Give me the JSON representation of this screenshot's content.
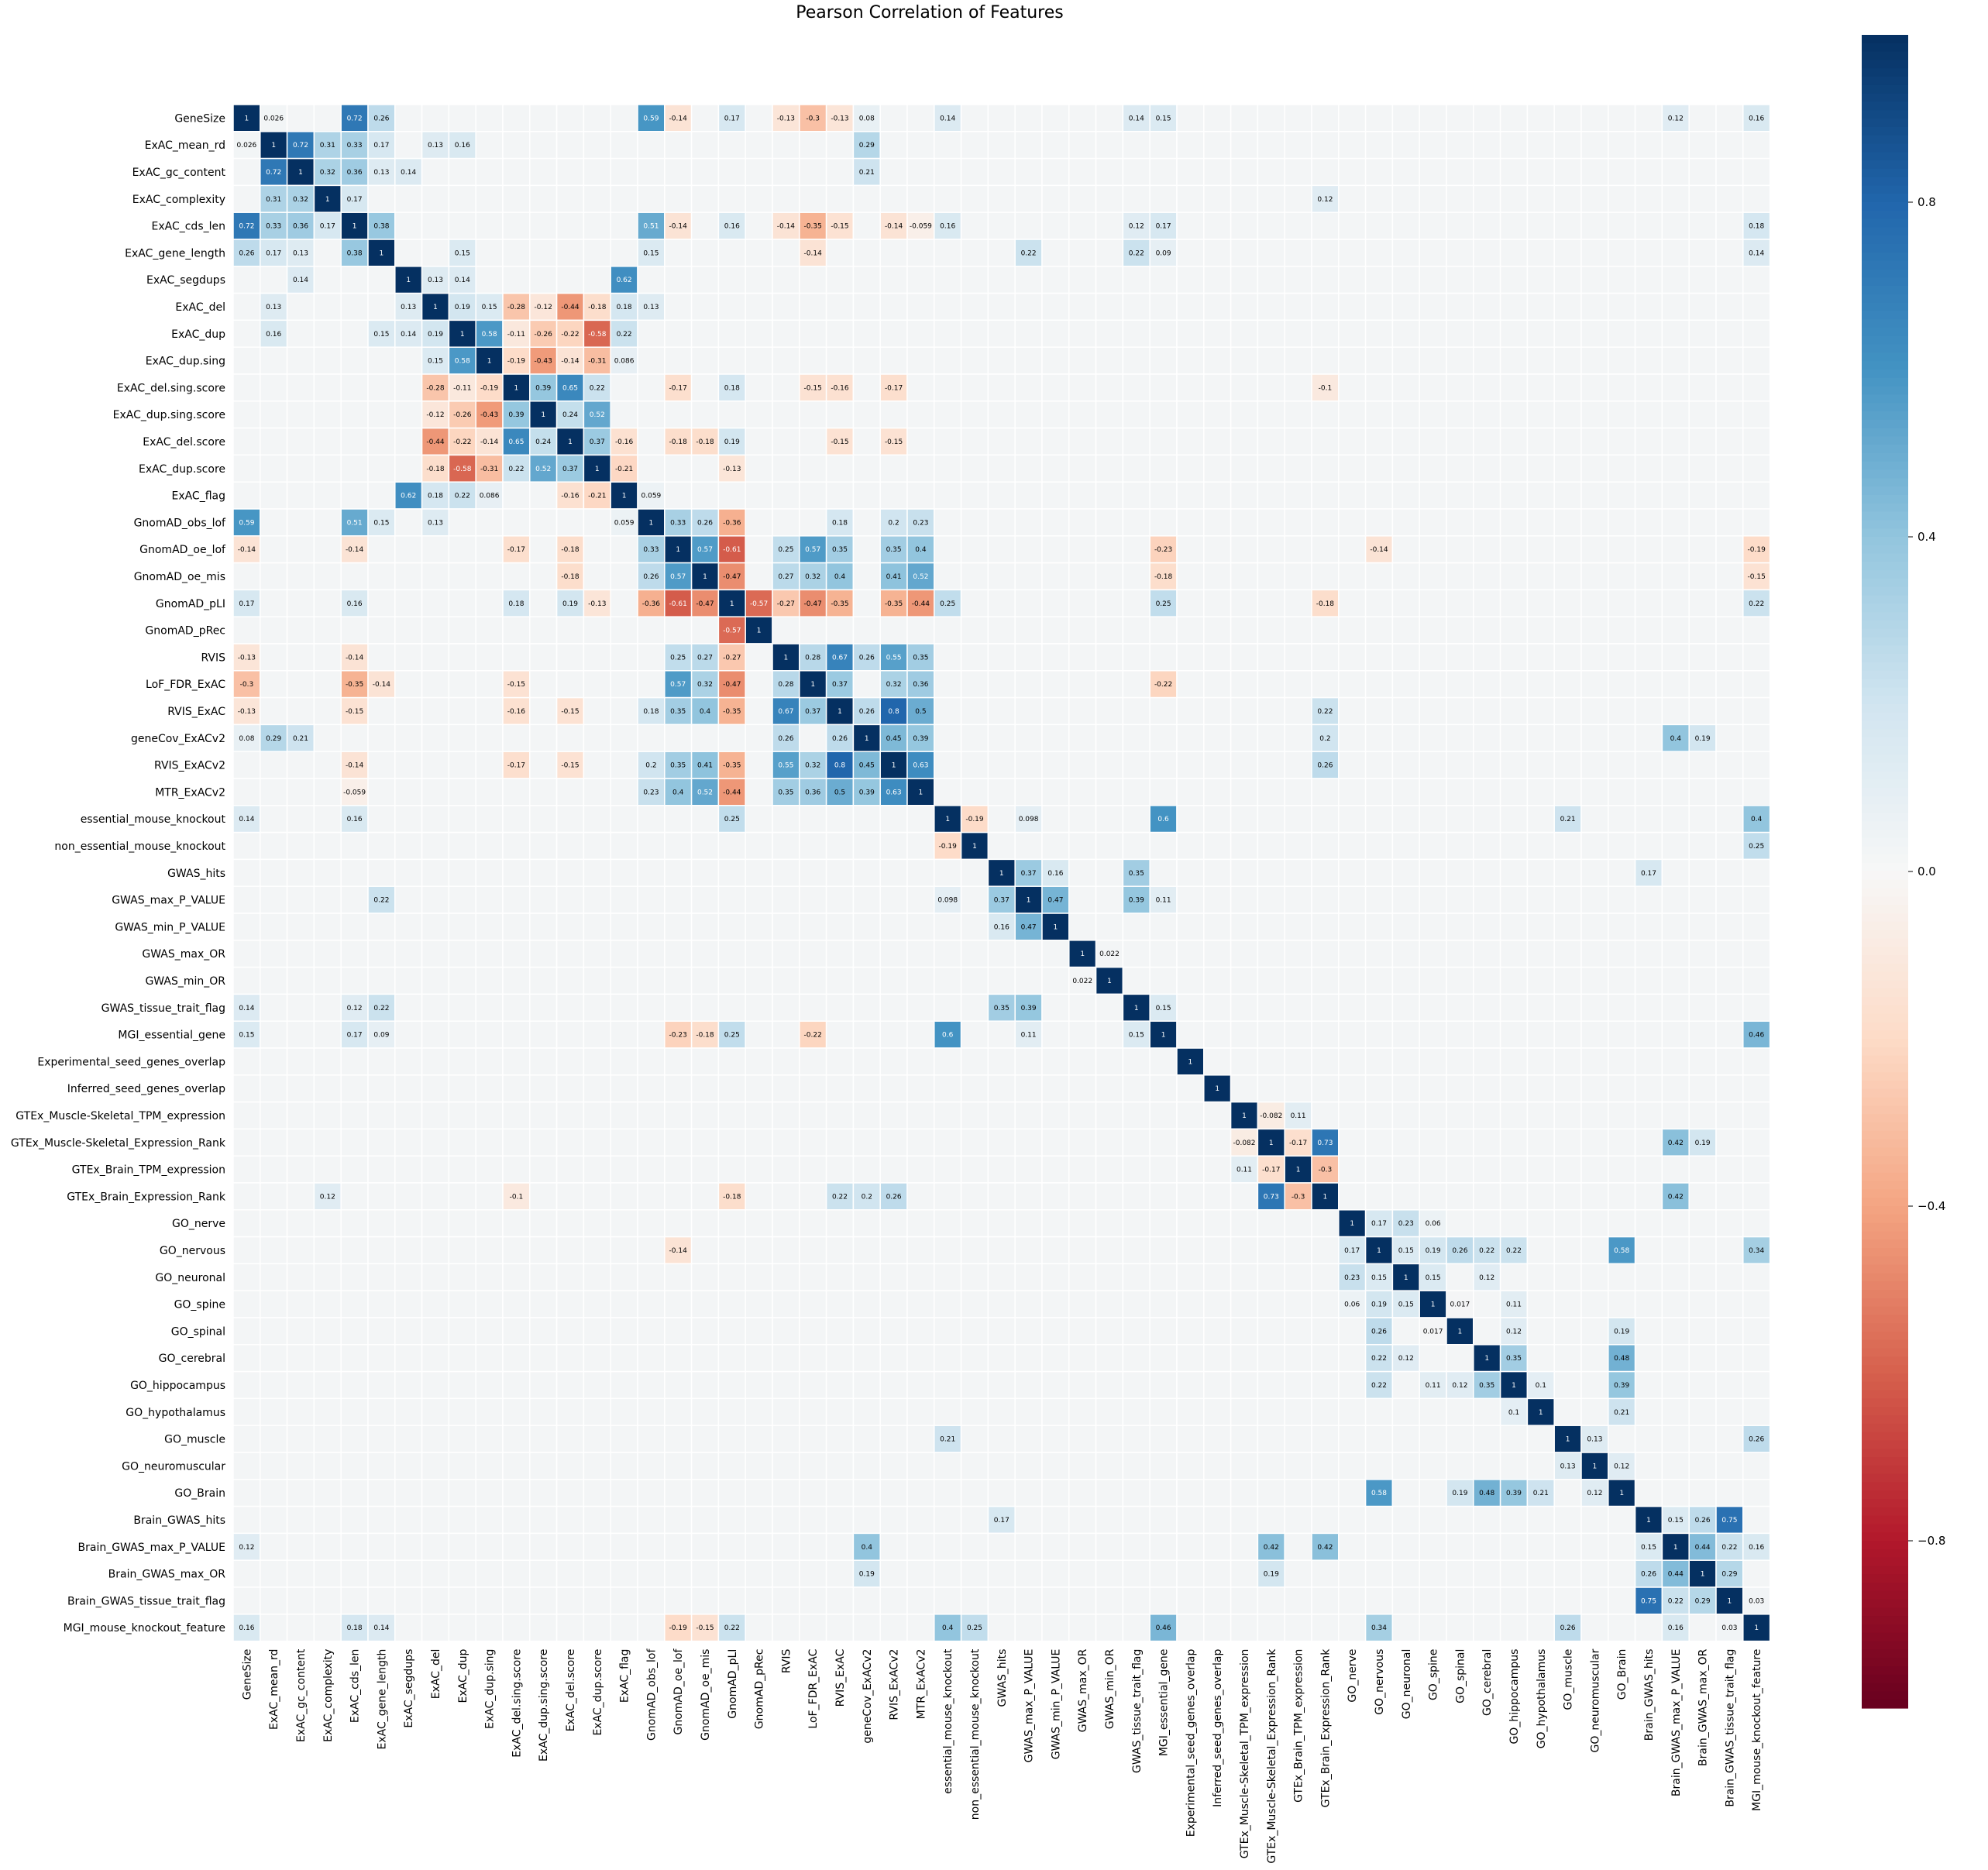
{
  "chart_data": {
    "type": "heatmap",
    "title": "Pearson Correlation of Features",
    "labels": [
      "GeneSize",
      "ExAC_mean_rd",
      "ExAC_gc_content",
      "ExAC_complexity",
      "ExAC_cds_len",
      "ExAC_gene_length",
      "ExAC_segdups",
      "ExAC_del",
      "ExAC_dup",
      "ExAC_dup.sing",
      "ExAC_del.sing.score",
      "ExAC_dup.sing.score",
      "ExAC_del.score",
      "ExAC_dup.score",
      "ExAC_flag",
      "GnomAD_obs_lof",
      "GnomAD_oe_lof",
      "GnomAD_oe_mis",
      "GnomAD_pLI",
      "GnomAD_pRec",
      "RVIS",
      "LoF_FDR_ExAC",
      "RVIS_ExAC",
      "geneCov_ExACv2",
      "RVIS_ExACv2",
      "MTR_ExACv2",
      "essential_mouse_knockout",
      "non_essential_mouse_knockout",
      "GWAS_hits",
      "GWAS_max_P_VALUE",
      "GWAS_min_P_VALUE",
      "GWAS_max_OR",
      "GWAS_min_OR",
      "GWAS_tissue_trait_flag",
      "MGI_essential_gene",
      "Experimental_seed_genes_overlap",
      "Inferred_seed_genes_overlap",
      "GTEx_Muscle-Skeletal_TPM_expression",
      "GTEx_Muscle-Skeletal_Expression_Rank",
      "GTEx_Brain_TPM_expression",
      "GTEx_Brain_Expression_Rank",
      "GO_nerve",
      "GO_nervous",
      "GO_neuronal",
      "GO_spine",
      "GO_spinal",
      "GO_cerebral",
      "GO_hippocampus",
      "GO_hypothalamus",
      "GO_muscle",
      "GO_neuromuscular",
      "GO_Brain",
      "Brain_GWAS_hits",
      "Brain_GWAS_max_P_VALUE",
      "Brain_GWAS_max_OR",
      "Brain_GWAS_tissue_trait_flag",
      "MGI_mouse_knockout_feature"
    ],
    "vmin": -1.0,
    "vmax": 1.0,
    "colorbar_ticks": [
      "0.8",
      "0.4",
      "0.0",
      "−0.4",
      "−0.8"
    ],
    "colorbar_tick_values": [
      0.8,
      0.4,
      0.0,
      -0.4,
      -0.8
    ],
    "colormap": "RdBu",
    "colormap_stops": [
      "#67001f",
      "#b2182b",
      "#d6604d",
      "#f4a582",
      "#fddbc7",
      "#f7f7f7",
      "#d1e5f0",
      "#92c5de",
      "#4393c3",
      "#2166ac",
      "#053061"
    ],
    "correlations": [
      {
        "i": 0,
        "j": 4,
        "v": 0.72
      },
      {
        "i": 0,
        "j": 15,
        "v": 0.59
      },
      {
        "i": 0,
        "j": 21,
        "v": -0.3
      },
      {
        "i": 0,
        "j": 5,
        "v": 0.26
      },
      {
        "i": 0,
        "j": 1,
        "v": 0.026
      },
      {
        "i": 0,
        "j": 16,
        "v": -0.14
      },
      {
        "i": 0,
        "j": 18,
        "v": 0.17
      },
      {
        "i": 0,
        "j": 20,
        "v": -0.13
      },
      {
        "i": 0,
        "j": 22,
        "v": -0.13
      },
      {
        "i": 0,
        "j": 33,
        "v": 0.14
      },
      {
        "i": 0,
        "j": 34,
        "v": 0.15
      },
      {
        "i": 0,
        "j": 26,
        "v": 0.14
      },
      {
        "i": 0,
        "j": 56,
        "v": 0.16
      },
      {
        "i": 0,
        "j": 23,
        "v": 0.08
      },
      {
        "i": 0,
        "j": 53,
        "v": 0.12
      },
      {
        "i": 1,
        "j": 2,
        "v": 0.72
      },
      {
        "i": 1,
        "j": 3,
        "v": 0.31
      },
      {
        "i": 1,
        "j": 4,
        "v": 0.33
      },
      {
        "i": 1,
        "j": 23,
        "v": 0.29
      },
      {
        "i": 1,
        "j": 5,
        "v": 0.17
      },
      {
        "i": 1,
        "j": 7,
        "v": 0.13
      },
      {
        "i": 1,
        "j": 8,
        "v": 0.16
      },
      {
        "i": 2,
        "j": 3,
        "v": 0.32
      },
      {
        "i": 2,
        "j": 4,
        "v": 0.36
      },
      {
        "i": 2,
        "j": 23,
        "v": 0.21
      },
      {
        "i": 2,
        "j": 5,
        "v": 0.13
      },
      {
        "i": 2,
        "j": 6,
        "v": 0.14
      },
      {
        "i": 3,
        "j": 4,
        "v": 0.17
      },
      {
        "i": 3,
        "j": 40,
        "v": 0.12
      },
      {
        "i": 4,
        "j": 5,
        "v": 0.38
      },
      {
        "i": 4,
        "j": 15,
        "v": 0.51
      },
      {
        "i": 4,
        "j": 21,
        "v": -0.35
      },
      {
        "i": 4,
        "j": 16,
        "v": -0.14
      },
      {
        "i": 4,
        "j": 18,
        "v": 0.16
      },
      {
        "i": 4,
        "j": 22,
        "v": -0.15
      },
      {
        "i": 4,
        "j": 20,
        "v": -0.14
      },
      {
        "i": 4,
        "j": 34,
        "v": 0.17
      },
      {
        "i": 4,
        "j": 33,
        "v": 0.12
      },
      {
        "i": 4,
        "j": 56,
        "v": 0.18
      },
      {
        "i": 4,
        "j": 26,
        "v": 0.16
      },
      {
        "i": 4,
        "j": 24,
        "v": -0.14
      },
      {
        "i": 4,
        "j": 25,
        "v": -0.059
      },
      {
        "i": 5,
        "j": 8,
        "v": 0.15
      },
      {
        "i": 5,
        "j": 15,
        "v": 0.15
      },
      {
        "i": 5,
        "j": 21,
        "v": -0.14
      },
      {
        "i": 5,
        "j": 33,
        "v": 0.22
      },
      {
        "i": 5,
        "j": 29,
        "v": 0.22
      },
      {
        "i": 5,
        "j": 34,
        "v": 0.09
      },
      {
        "i": 5,
        "j": 56,
        "v": 0.14
      },
      {
        "i": 6,
        "j": 14,
        "v": 0.62
      },
      {
        "i": 6,
        "j": 7,
        "v": 0.13
      },
      {
        "i": 6,
        "j": 8,
        "v": 0.14
      },
      {
        "i": 7,
        "j": 8,
        "v": 0.19
      },
      {
        "i": 7,
        "j": 9,
        "v": 0.15
      },
      {
        "i": 7,
        "j": 10,
        "v": -0.28
      },
      {
        "i": 7,
        "j": 11,
        "v": -0.12
      },
      {
        "i": 7,
        "j": 12,
        "v": -0.44
      },
      {
        "i": 7,
        "j": 13,
        "v": -0.18
      },
      {
        "i": 7,
        "j": 14,
        "v": 0.18
      },
      {
        "i": 7,
        "j": 15,
        "v": 0.13
      },
      {
        "i": 8,
        "j": 9,
        "v": 0.58
      },
      {
        "i": 8,
        "j": 10,
        "v": -0.11
      },
      {
        "i": 8,
        "j": 11,
        "v": -0.26
      },
      {
        "i": 8,
        "j": 12,
        "v": -0.22
      },
      {
        "i": 8,
        "j": 13,
        "v": -0.58
      },
      {
        "i": 8,
        "j": 14,
        "v": 0.22
      },
      {
        "i": 9,
        "j": 10,
        "v": -0.19
      },
      {
        "i": 9,
        "j": 11,
        "v": -0.43
      },
      {
        "i": 9,
        "j": 12,
        "v": -0.14
      },
      {
        "i": 9,
        "j": 13,
        "v": -0.31
      },
      {
        "i": 9,
        "j": 14,
        "v": 0.086
      },
      {
        "i": 10,
        "j": 11,
        "v": 0.39
      },
      {
        "i": 10,
        "j": 12,
        "v": 0.65
      },
      {
        "i": 10,
        "j": 13,
        "v": 0.22
      },
      {
        "i": 10,
        "j": 16,
        "v": -0.17
      },
      {
        "i": 10,
        "j": 18,
        "v": 0.18
      },
      {
        "i": 10,
        "j": 21,
        "v": -0.15
      },
      {
        "i": 10,
        "j": 22,
        "v": -0.16
      },
      {
        "i": 10,
        "j": 24,
        "v": -0.17
      },
      {
        "i": 10,
        "j": 40,
        "v": -0.1
      },
      {
        "i": 11,
        "j": 12,
        "v": 0.24
      },
      {
        "i": 11,
        "j": 13,
        "v": 0.52
      },
      {
        "i": 12,
        "j": 13,
        "v": 0.37
      },
      {
        "i": 12,
        "j": 16,
        "v": -0.18
      },
      {
        "i": 12,
        "j": 17,
        "v": -0.18
      },
      {
        "i": 12,
        "j": 18,
        "v": 0.19
      },
      {
        "i": 12,
        "j": 22,
        "v": -0.15
      },
      {
        "i": 12,
        "j": 24,
        "v": -0.15
      },
      {
        "i": 12,
        "j": 14,
        "v": -0.16
      },
      {
        "i": 13,
        "j": 14,
        "v": -0.21
      },
      {
        "i": 13,
        "j": 18,
        "v": -0.13
      },
      {
        "i": 14,
        "j": 15,
        "v": 0.059
      },
      {
        "i": 15,
        "j": 16,
        "v": 0.33
      },
      {
        "i": 15,
        "j": 17,
        "v": 0.26
      },
      {
        "i": 15,
        "j": 18,
        "v": -0.36
      },
      {
        "i": 15,
        "j": 22,
        "v": 0.18
      },
      {
        "i": 15,
        "j": 25,
        "v": 0.23
      },
      {
        "i": 15,
        "j": 24,
        "v": 0.2
      },
      {
        "i": 16,
        "j": 17,
        "v": 0.57
      },
      {
        "i": 16,
        "j": 18,
        "v": -0.61
      },
      {
        "i": 16,
        "j": 20,
        "v": 0.25
      },
      {
        "i": 16,
        "j": 21,
        "v": 0.57
      },
      {
        "i": 16,
        "j": 22,
        "v": 0.35
      },
      {
        "i": 16,
        "j": 24,
        "v": 0.35
      },
      {
        "i": 16,
        "j": 25,
        "v": 0.4
      },
      {
        "i": 16,
        "j": 34,
        "v": -0.23
      },
      {
        "i": 16,
        "j": 56,
        "v": -0.19
      },
      {
        "i": 16,
        "j": 42,
        "v": -0.14
      },
      {
        "i": 17,
        "j": 18,
        "v": -0.47
      },
      {
        "i": 17,
        "j": 20,
        "v": 0.27
      },
      {
        "i": 17,
        "j": 21,
        "v": 0.32
      },
      {
        "i": 17,
        "j": 22,
        "v": 0.4
      },
      {
        "i": 17,
        "j": 24,
        "v": 0.41
      },
      {
        "i": 17,
        "j": 25,
        "v": 0.52
      },
      {
        "i": 17,
        "j": 34,
        "v": -0.18
      },
      {
        "i": 17,
        "j": 56,
        "v": -0.15
      },
      {
        "i": 18,
        "j": 19,
        "v": -0.57
      },
      {
        "i": 18,
        "j": 20,
        "v": -0.27
      },
      {
        "i": 18,
        "j": 21,
        "v": -0.47
      },
      {
        "i": 18,
        "j": 22,
        "v": -0.35
      },
      {
        "i": 18,
        "j": 24,
        "v": -0.35
      },
      {
        "i": 18,
        "j": 25,
        "v": -0.44
      },
      {
        "i": 18,
        "j": 34,
        "v": 0.25
      },
      {
        "i": 18,
        "j": 26,
        "v": 0.25
      },
      {
        "i": 18,
        "j": 56,
        "v": 0.22
      },
      {
        "i": 18,
        "j": 40,
        "v": -0.18
      },
      {
        "i": 20,
        "j": 21,
        "v": 0.28
      },
      {
        "i": 20,
        "j": 22,
        "v": 0.67
      },
      {
        "i": 20,
        "j": 23,
        "v": 0.26
      },
      {
        "i": 20,
        "j": 24,
        "v": 0.55
      },
      {
        "i": 20,
        "j": 25,
        "v": 0.35
      },
      {
        "i": 21,
        "j": 22,
        "v": 0.37
      },
      {
        "i": 21,
        "j": 24,
        "v": 0.32
      },
      {
        "i": 21,
        "j": 25,
        "v": 0.36
      },
      {
        "i": 21,
        "j": 34,
        "v": -0.22
      },
      {
        "i": 22,
        "j": 23,
        "v": 0.26
      },
      {
        "i": 22,
        "j": 24,
        "v": 0.8
      },
      {
        "i": 22,
        "j": 25,
        "v": 0.5
      },
      {
        "i": 22,
        "j": 40,
        "v": 0.22
      },
      {
        "i": 23,
        "j": 24,
        "v": 0.45
      },
      {
        "i": 23,
        "j": 25,
        "v": 0.39
      },
      {
        "i": 23,
        "j": 53,
        "v": 0.4
      },
      {
        "i": 23,
        "j": 40,
        "v": 0.2
      },
      {
        "i": 23,
        "j": 54,
        "v": 0.19
      },
      {
        "i": 24,
        "j": 25,
        "v": 0.63
      },
      {
        "i": 24,
        "j": 40,
        "v": 0.26
      },
      {
        "i": 26,
        "j": 34,
        "v": 0.6
      },
      {
        "i": 26,
        "j": 27,
        "v": -0.19
      },
      {
        "i": 26,
        "j": 56,
        "v": 0.4
      },
      {
        "i": 26,
        "j": 49,
        "v": 0.21
      },
      {
        "i": 26,
        "j": 29,
        "v": 0.098
      },
      {
        "i": 27,
        "j": 56,
        "v": 0.25
      },
      {
        "i": 28,
        "j": 29,
        "v": 0.37
      },
      {
        "i": 28,
        "j": 33,
        "v": 0.35
      },
      {
        "i": 28,
        "j": 30,
        "v": 0.16
      },
      {
        "i": 28,
        "j": 52,
        "v": 0.17
      },
      {
        "i": 29,
        "j": 30,
        "v": 0.47
      },
      {
        "i": 29,
        "j": 33,
        "v": 0.39
      },
      {
        "i": 29,
        "j": 34,
        "v": 0.11
      },
      {
        "i": 31,
        "j": 32,
        "v": 0.022
      },
      {
        "i": 33,
        "j": 34,
        "v": 0.15
      },
      {
        "i": 34,
        "j": 56,
        "v": 0.46
      },
      {
        "i": 37,
        "j": 38,
        "v": -0.082
      },
      {
        "i": 37,
        "j": 39,
        "v": 0.11
      },
      {
        "i": 38,
        "j": 39,
        "v": -0.17
      },
      {
        "i": 38,
        "j": 40,
        "v": 0.73
      },
      {
        "i": 38,
        "j": 53,
        "v": 0.42
      },
      {
        "i": 38,
        "j": 54,
        "v": 0.19
      },
      {
        "i": 39,
        "j": 40,
        "v": -0.3
      },
      {
        "i": 40,
        "j": 53,
        "v": 0.42
      },
      {
        "i": 41,
        "j": 42,
        "v": 0.17
      },
      {
        "i": 41,
        "j": 43,
        "v": 0.23
      },
      {
        "i": 41,
        "j": 44,
        "v": 0.06
      },
      {
        "i": 42,
        "j": 43,
        "v": 0.15
      },
      {
        "i": 42,
        "j": 44,
        "v": 0.19
      },
      {
        "i": 42,
        "j": 45,
        "v": 0.26
      },
      {
        "i": 42,
        "j": 46,
        "v": 0.22
      },
      {
        "i": 42,
        "j": 47,
        "v": 0.22
      },
      {
        "i": 42,
        "j": 51,
        "v": 0.58
      },
      {
        "i": 42,
        "j": 56,
        "v": 0.34
      },
      {
        "i": 43,
        "j": 44,
        "v": 0.15
      },
      {
        "i": 43,
        "j": 46,
        "v": 0.12
      },
      {
        "i": 44,
        "j": 45,
        "v": 0.017
      },
      {
        "i": 44,
        "j": 47,
        "v": 0.11
      },
      {
        "i": 45,
        "j": 51,
        "v": 0.19
      },
      {
        "i": 45,
        "j": 47,
        "v": 0.12
      },
      {
        "i": 46,
        "j": 47,
        "v": 0.35
      },
      {
        "i": 46,
        "j": 51,
        "v": 0.48
      },
      {
        "i": 47,
        "j": 48,
        "v": 0.1
      },
      {
        "i": 47,
        "j": 51,
        "v": 0.39
      },
      {
        "i": 48,
        "j": 51,
        "v": 0.21
      },
      {
        "i": 49,
        "j": 50,
        "v": 0.13
      },
      {
        "i": 49,
        "j": 56,
        "v": 0.26
      },
      {
        "i": 50,
        "j": 51,
        "v": 0.12
      },
      {
        "i": 52,
        "j": 53,
        "v": 0.15
      },
      {
        "i": 52,
        "j": 54,
        "v": 0.26
      },
      {
        "i": 52,
        "j": 55,
        "v": 0.75
      },
      {
        "i": 53,
        "j": 54,
        "v": 0.44
      },
      {
        "i": 53,
        "j": 55,
        "v": 0.22
      },
      {
        "i": 53,
        "j": 56,
        "v": 0.16
      },
      {
        "i": 54,
        "j": 55,
        "v": 0.29
      },
      {
        "i": 55,
        "j": 56,
        "v": 0.03
      }
    ]
  }
}
